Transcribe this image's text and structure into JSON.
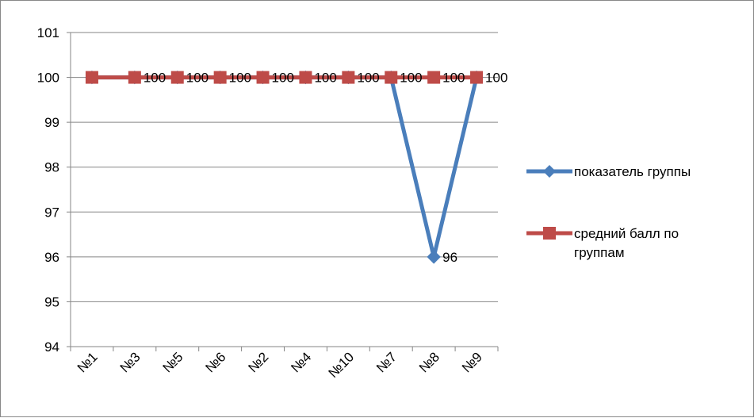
{
  "chart_data": {
    "type": "line",
    "categories": [
      "№1",
      "№3",
      "№5",
      "№6",
      "№2",
      "№4",
      "№10",
      "№7",
      "№8",
      "№9"
    ],
    "ylim": [
      94,
      101
    ],
    "yticks": [
      94,
      95,
      96,
      97,
      98,
      99,
      100,
      101
    ],
    "grid": true,
    "legend_position": "right",
    "series": [
      {
        "name": "показатель группы",
        "color": "#4a7ebb",
        "marker": "diamond",
        "values": [
          100,
          100,
          100,
          100,
          100,
          100,
          100,
          100,
          96,
          100
        ],
        "data_labels": [
          "",
          "",
          "",
          "",
          "",
          "",
          "",
          "",
          "96",
          ""
        ]
      },
      {
        "name": "средний балл по группам",
        "name_lines": [
          "средний балл по",
          "группам"
        ],
        "color": "#be4b48",
        "marker": "square",
        "values": [
          100,
          100,
          100,
          100,
          100,
          100,
          100,
          100,
          100,
          100
        ],
        "data_labels": [
          "",
          "100",
          "100",
          "100",
          "100",
          "100",
          "100",
          "100",
          "100",
          "100"
        ]
      }
    ]
  }
}
